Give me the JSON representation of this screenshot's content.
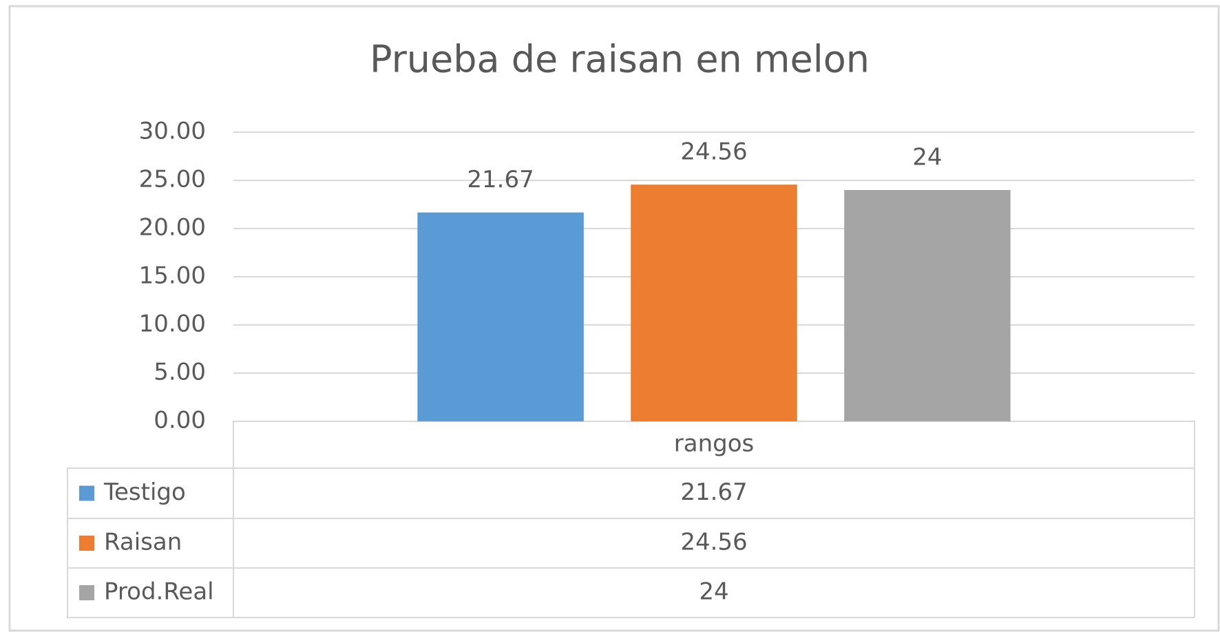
{
  "chart_data": {
    "type": "bar",
    "title": "Prueba de raisan en melon",
    "categories": [
      "rangos"
    ],
    "series": [
      {
        "name": "Testigo",
        "color": "#5b9bd5",
        "values": [
          21.67
        ]
      },
      {
        "name": "Raisan",
        "color": "#ed7d31",
        "values": [
          24.56
        ]
      },
      {
        "name": "Prod.Real",
        "color": "#a5a5a5",
        "values": [
          24
        ]
      }
    ],
    "ylim": [
      0,
      30
    ],
    "yticks": [
      {
        "value": 0,
        "label": "0.00"
      },
      {
        "value": 5,
        "label": "5.00"
      },
      {
        "value": 10,
        "label": "10.00"
      },
      {
        "value": 15,
        "label": "15.00"
      },
      {
        "value": 20,
        "label": "20.00"
      },
      {
        "value": 25,
        "label": "25.00"
      },
      {
        "value": 30,
        "label": "30.00"
      }
    ],
    "grid": true,
    "data_table": true
  }
}
